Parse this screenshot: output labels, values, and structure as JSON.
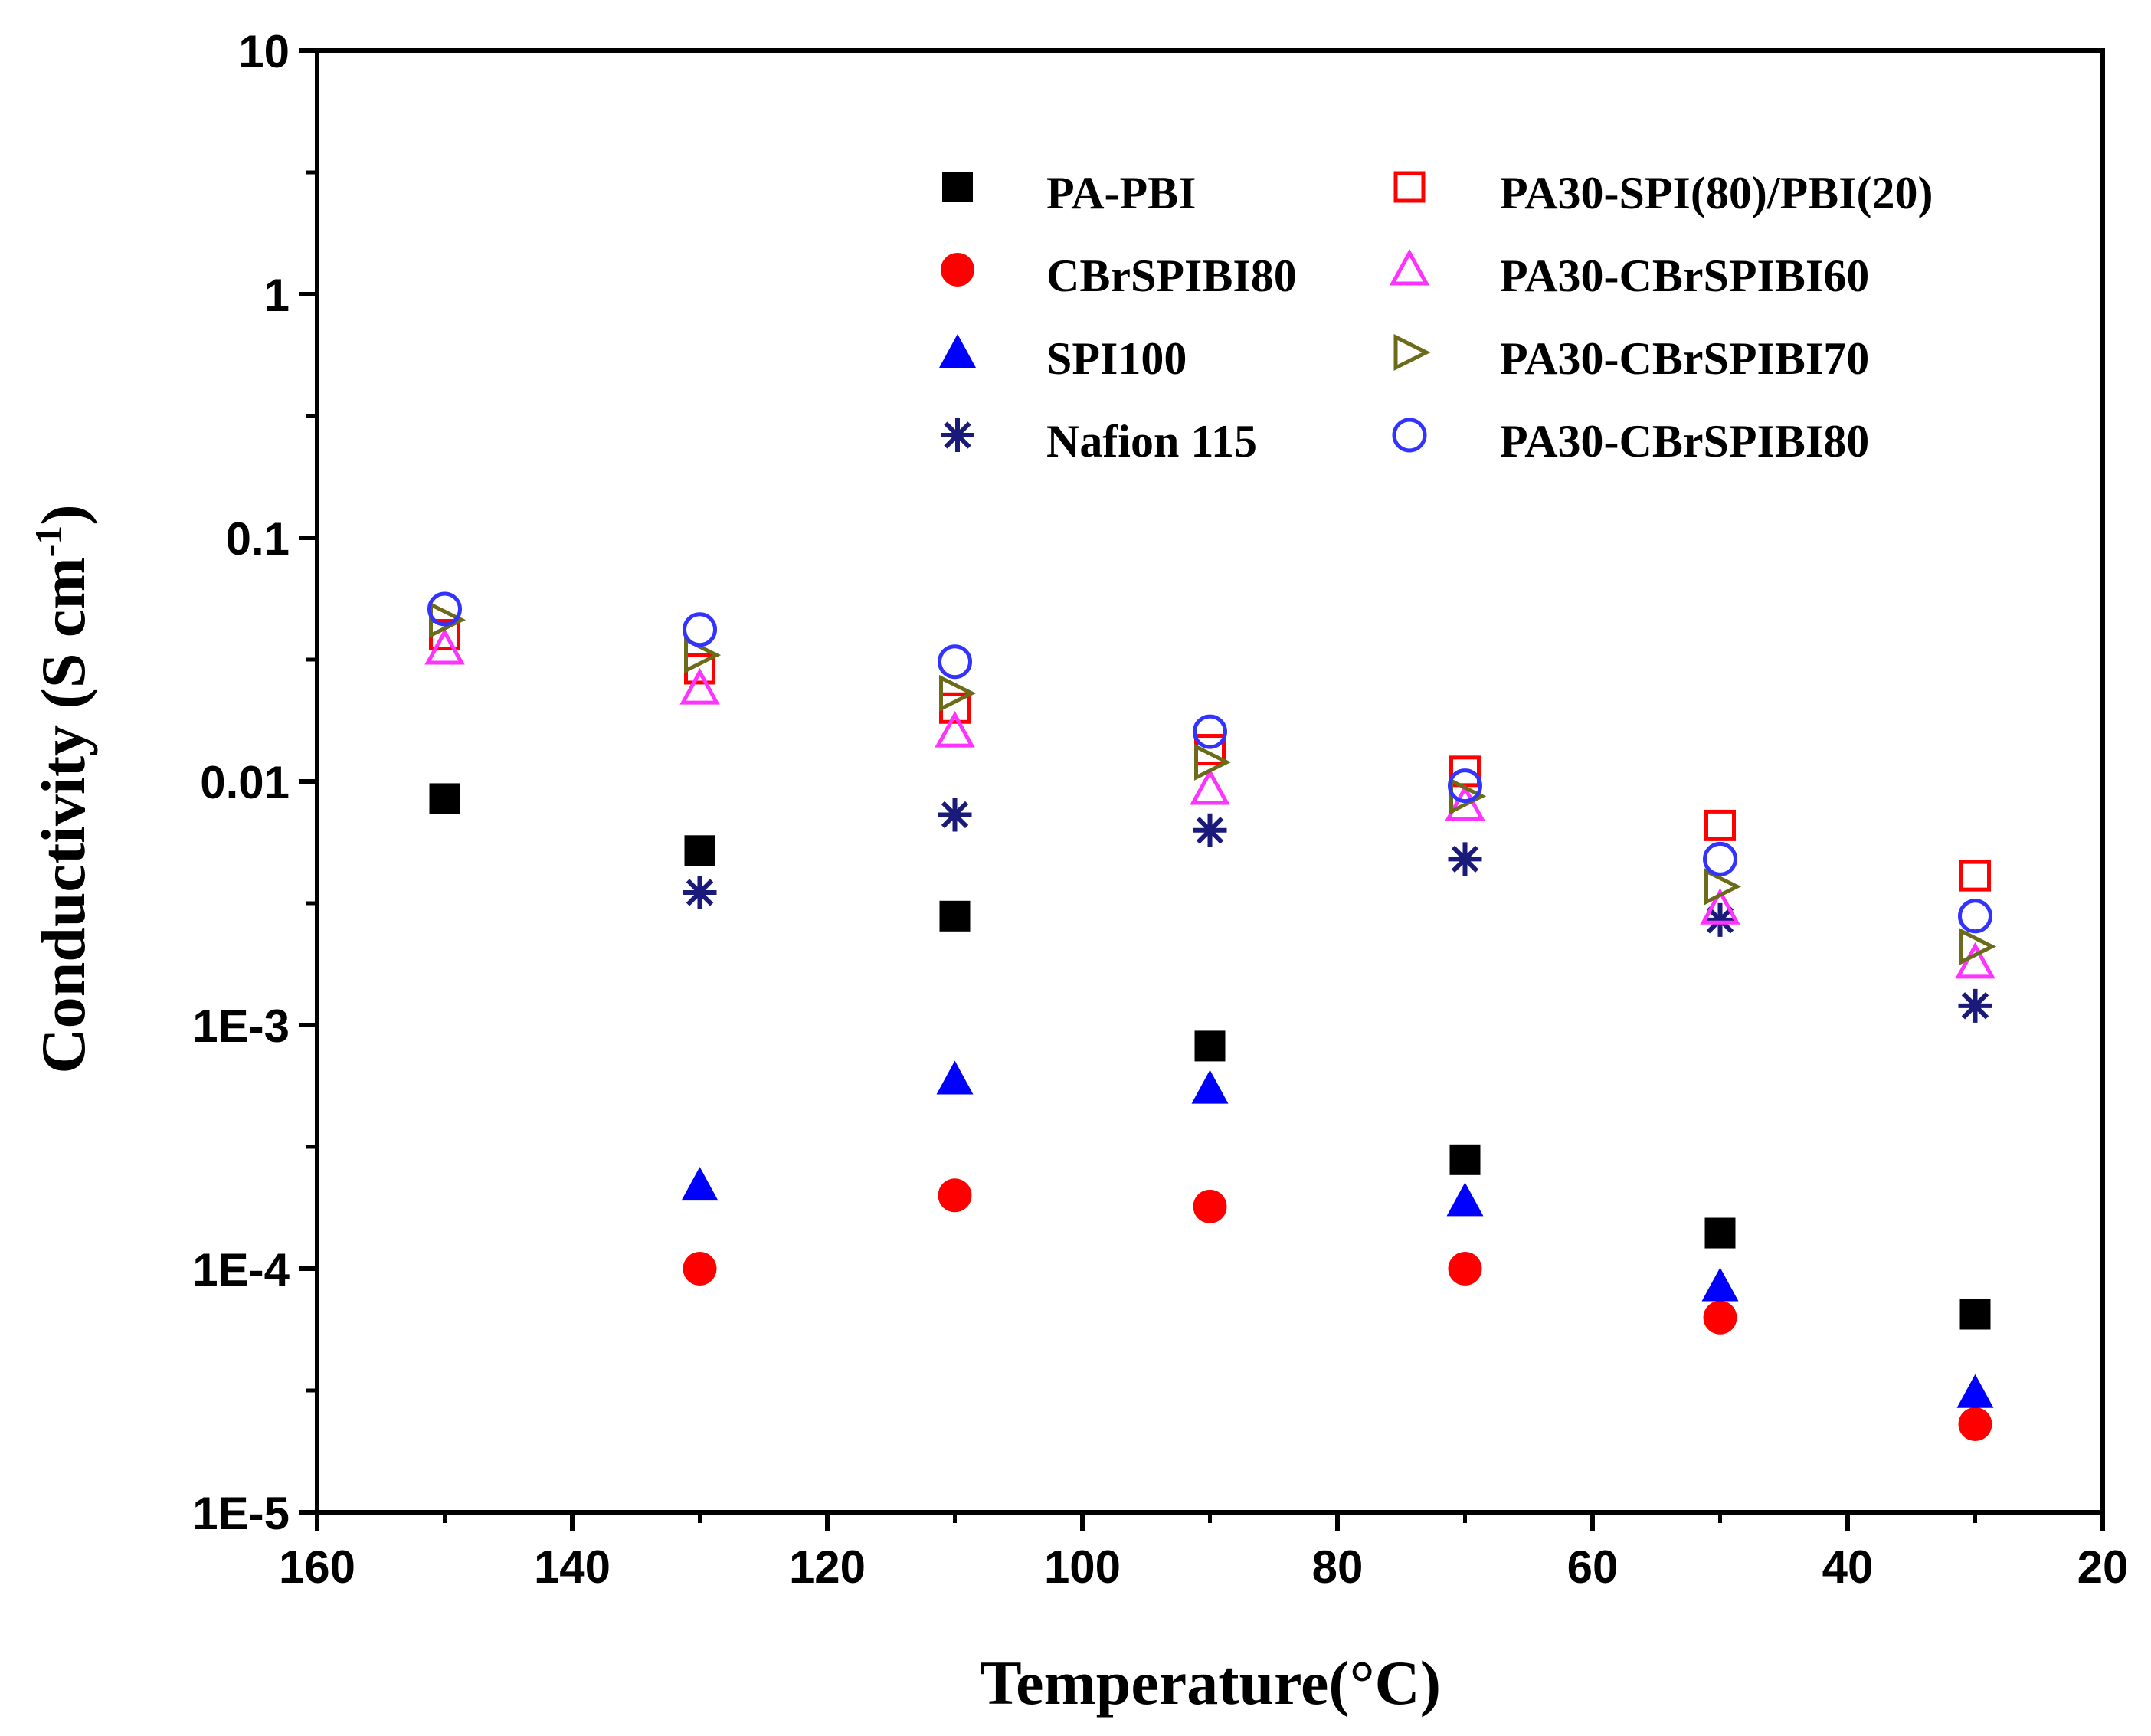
{
  "chart_data": {
    "type": "scatter",
    "title": "",
    "xlabel": "Temperature(",
    "xlabel_unit": "°C",
    "xlabel_suffix": ")",
    "ylabel": "Conductivity (S cm",
    "ylabel_sup": "-1",
    "ylabel_suffix": ")",
    "xlim": [
      160,
      20
    ],
    "ylim": [
      1e-05,
      10
    ],
    "yscale": "log",
    "grid": false,
    "legend_position": "top-right",
    "x_ticks": [
      160,
      140,
      120,
      100,
      80,
      60,
      40,
      20
    ],
    "x_tick_labels": [
      "160",
      "140",
      "120",
      "100",
      "80",
      "60",
      "40",
      "20"
    ],
    "y_ticks": [
      1e-05,
      0.0001,
      0.001,
      0.01,
      0.1,
      1,
      10
    ],
    "y_tick_labels": [
      "1E-5",
      "1E-4",
      "1E-3",
      "0.01",
      "0.1",
      "1",
      "10"
    ],
    "series": [
      {
        "name": "PA-PBI",
        "marker": "square-filled",
        "color": "#000000",
        "x": [
          150,
          130,
          110,
          90,
          70,
          50,
          30
        ],
        "y": [
          0.0085,
          0.0052,
          0.0028,
          0.00082,
          0.00028,
          0.00014,
          6.5e-05
        ]
      },
      {
        "name": "CBrSPIBI80",
        "marker": "circle-filled",
        "color": "#ff0000",
        "x": [
          130,
          110,
          90,
          70,
          50,
          30
        ],
        "y": [
          0.0001,
          0.0002,
          0.00018,
          0.0001,
          6.3e-05,
          2.3e-05
        ]
      },
      {
        "name": "SPI100",
        "marker": "triangle-up-filled",
        "color": "#0000ff",
        "x": [
          130,
          110,
          90,
          70,
          50,
          30
        ],
        "y": [
          0.00022,
          0.0006,
          0.00055,
          0.00019,
          8.5e-05,
          3.1e-05
        ]
      },
      {
        "name": "Nafion 115",
        "marker": "asterisk",
        "color": "#1a1a7a",
        "x": [
          130,
          110,
          90,
          70,
          50,
          30
        ],
        "y": [
          0.0035,
          0.0073,
          0.0063,
          0.0048,
          0.0027,
          0.0012
        ]
      },
      {
        "name": "PA30-SPI(80)/PBI(20)",
        "marker": "square-open",
        "color": "#ff0000",
        "x": [
          150,
          130,
          110,
          90,
          70,
          50,
          30
        ],
        "y": [
          0.04,
          0.029,
          0.02,
          0.0135,
          0.011,
          0.0066,
          0.0041
        ]
      },
      {
        "name": "PA30-CBrSPIBI60",
        "marker": "triangle-up-open",
        "color": "#ff33ff",
        "x": [
          150,
          130,
          110,
          90,
          70,
          50,
          30
        ],
        "y": [
          0.035,
          0.024,
          0.016,
          0.0093,
          0.008,
          0.003,
          0.0018
        ]
      },
      {
        "name": "PA30-CBrSPIBI70",
        "marker": "triangle-right-open",
        "color": "#6b6b1a",
        "x": [
          150,
          130,
          110,
          90,
          70,
          50,
          30
        ],
        "y": [
          0.046,
          0.033,
          0.023,
          0.012,
          0.0087,
          0.0037,
          0.0021
        ]
      },
      {
        "name": "PA30-CBrSPIBI80",
        "marker": "circle-open",
        "color": "#3333ff",
        "x": [
          150,
          130,
          110,
          90,
          70,
          50,
          30
        ],
        "y": [
          0.051,
          0.042,
          0.031,
          0.016,
          0.0096,
          0.0048,
          0.0028
        ]
      }
    ]
  }
}
